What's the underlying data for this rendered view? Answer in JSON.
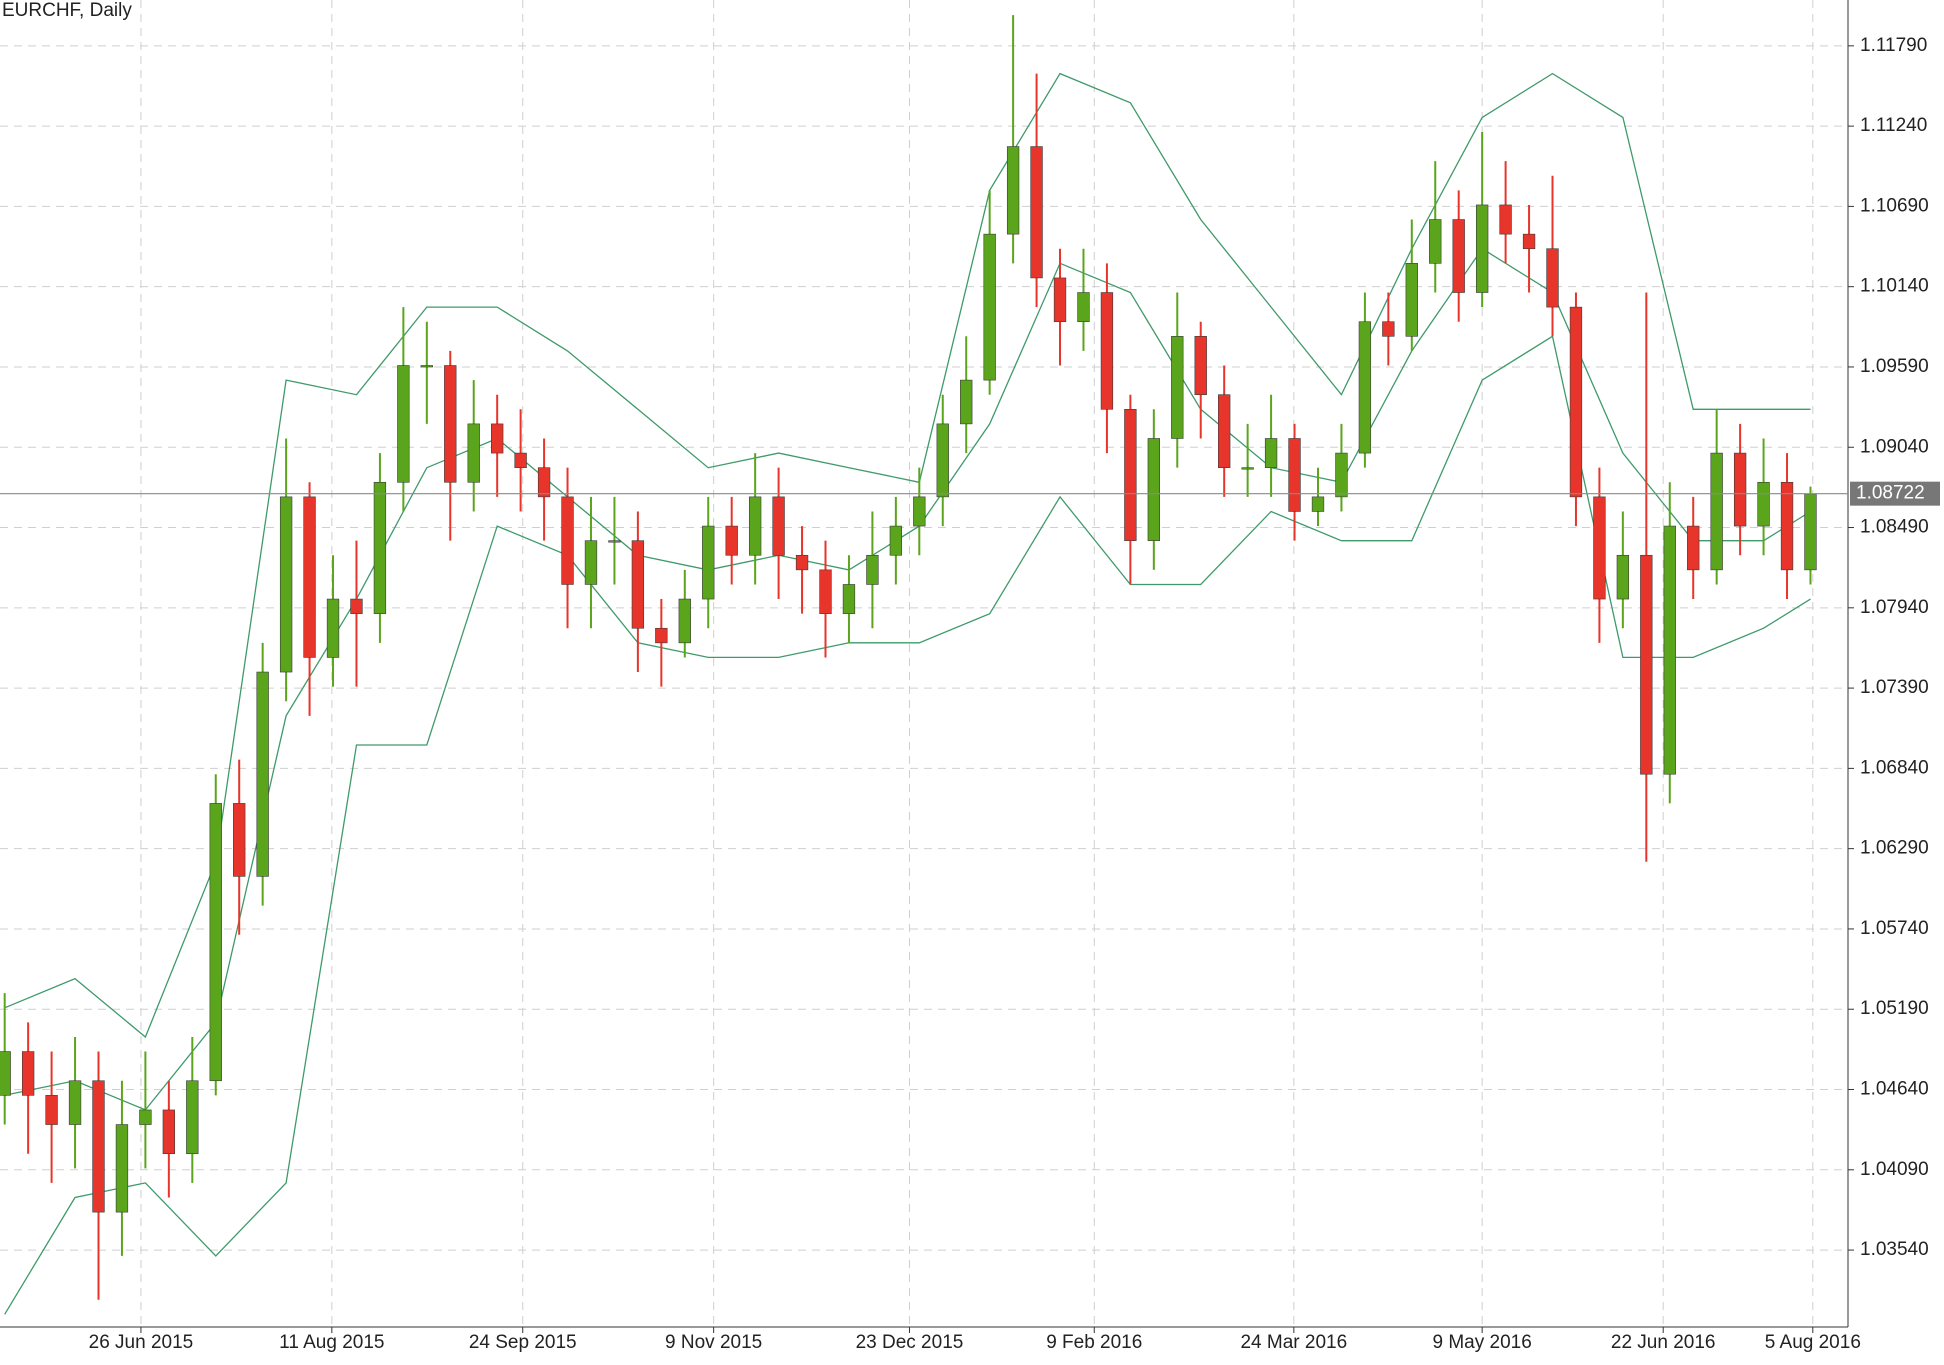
{
  "chart_data": {
    "type": "candlestick",
    "title": "EURCHF, Daily",
    "up_color": "#5aa51c",
    "down_color": "#e8352b",
    "x": [
      0,
      1,
      2,
      3,
      4,
      5,
      6,
      7,
      8,
      9,
      10,
      11,
      12,
      13,
      14,
      15,
      16,
      17,
      18,
      19,
      20,
      21,
      22,
      23,
      24,
      25,
      26,
      27,
      28,
      29,
      30,
      31,
      32,
      33,
      34,
      35,
      36,
      37,
      38,
      39,
      40,
      41,
      42,
      43,
      44,
      45,
      46,
      47,
      48,
      49,
      50,
      51,
      52,
      53,
      54,
      55,
      56,
      57,
      58,
      59,
      60,
      61,
      62,
      63,
      64,
      65,
      66,
      67,
      68,
      69,
      70,
      71,
      72,
      73,
      74,
      75,
      76,
      77
    ],
    "open": [
      1.046,
      1.049,
      1.046,
      1.044,
      1.047,
      1.038,
      1.044,
      1.045,
      1.042,
      1.047,
      1.066,
      1.061,
      1.075,
      1.087,
      1.076,
      1.08,
      1.079,
      1.088,
      1.096,
      1.096,
      1.088,
      1.092,
      1.09,
      1.089,
      1.087,
      1.081,
      1.084,
      1.084,
      1.078,
      1.077,
      1.08,
      1.085,
      1.083,
      1.087,
      1.083,
      1.082,
      1.079,
      1.081,
      1.083,
      1.085,
      1.087,
      1.092,
      1.095,
      1.105,
      1.111,
      1.102,
      1.099,
      1.101,
      1.093,
      1.084,
      1.091,
      1.098,
      1.094,
      1.089,
      1.089,
      1.091,
      1.086,
      1.087,
      1.09,
      1.099,
      1.098,
      1.103,
      1.106,
      1.101,
      1.107,
      1.105,
      1.104,
      1.1,
      1.087,
      1.08,
      1.083,
      1.068,
      1.085,
      1.082,
      1.09,
      1.085,
      1.088,
      1.082
    ],
    "high": [
      1.053,
      1.051,
      1.049,
      1.05,
      1.049,
      1.047,
      1.049,
      1.047,
      1.05,
      1.068,
      1.069,
      1.077,
      1.091,
      1.088,
      1.083,
      1.084,
      1.09,
      1.1,
      1.099,
      1.097,
      1.095,
      1.094,
      1.093,
      1.091,
      1.089,
      1.087,
      1.087,
      1.086,
      1.08,
      1.082,
      1.087,
      1.087,
      1.09,
      1.089,
      1.085,
      1.084,
      1.083,
      1.086,
      1.087,
      1.089,
      1.094,
      1.098,
      1.108,
      1.12,
      1.116,
      1.104,
      1.104,
      1.103,
      1.094,
      1.093,
      1.101,
      1.099,
      1.096,
      1.092,
      1.094,
      1.092,
      1.089,
      1.092,
      1.101,
      1.101,
      1.106,
      1.11,
      1.108,
      1.112,
      1.11,
      1.107,
      1.109,
      1.101,
      1.089,
      1.086,
      1.101,
      1.088,
      1.087,
      1.093,
      1.092,
      1.091,
      1.09,
      1.0877
    ],
    "low": [
      1.044,
      1.042,
      1.04,
      1.041,
      1.032,
      1.035,
      1.041,
      1.039,
      1.04,
      1.046,
      1.057,
      1.059,
      1.073,
      1.072,
      1.074,
      1.074,
      1.077,
      1.086,
      1.092,
      1.084,
      1.086,
      1.087,
      1.086,
      1.084,
      1.078,
      1.078,
      1.081,
      1.075,
      1.074,
      1.076,
      1.078,
      1.081,
      1.081,
      1.08,
      1.079,
      1.076,
      1.077,
      1.078,
      1.081,
      1.083,
      1.085,
      1.09,
      1.094,
      1.103,
      1.1,
      1.096,
      1.097,
      1.09,
      1.081,
      1.082,
      1.089,
      1.091,
      1.087,
      1.087,
      1.087,
      1.084,
      1.085,
      1.086,
      1.089,
      1.096,
      1.097,
      1.101,
      1.099,
      1.1,
      1.103,
      1.101,
      1.098,
      1.085,
      1.077,
      1.078,
      1.062,
      1.066,
      1.08,
      1.081,
      1.083,
      1.083,
      1.08,
      1.081
    ],
    "close": [
      1.049,
      1.046,
      1.044,
      1.047,
      1.038,
      1.044,
      1.045,
      1.042,
      1.047,
      1.066,
      1.061,
      1.075,
      1.087,
      1.076,
      1.08,
      1.079,
      1.088,
      1.096,
      1.096,
      1.088,
      1.092,
      1.09,
      1.089,
      1.087,
      1.081,
      1.084,
      1.084,
      1.078,
      1.077,
      1.08,
      1.085,
      1.083,
      1.087,
      1.083,
      1.082,
      1.079,
      1.081,
      1.083,
      1.085,
      1.087,
      1.092,
      1.095,
      1.105,
      1.111,
      1.102,
      1.099,
      1.101,
      1.093,
      1.084,
      1.091,
      1.098,
      1.094,
      1.089,
      1.089,
      1.091,
      1.086,
      1.087,
      1.09,
      1.099,
      1.098,
      1.103,
      1.106,
      1.101,
      1.107,
      1.105,
      1.104,
      1.1,
      1.087,
      1.08,
      1.083,
      1.068,
      1.085,
      1.082,
      1.09,
      1.085,
      1.088,
      1.082,
      1.0872
    ],
    "bands": {
      "color": "#3f9a6a",
      "x": [
        0,
        3,
        6,
        9,
        12,
        15,
        18,
        21,
        24,
        27,
        30,
        33,
        36,
        39,
        42,
        45,
        48,
        51,
        54,
        57,
        60,
        63,
        66,
        69,
        72,
        75,
        77
      ],
      "upper": [
        1.052,
        1.054,
        1.05,
        1.062,
        1.095,
        1.094,
        1.1,
        1.1,
        1.097,
        1.093,
        1.089,
        1.09,
        1.089,
        1.088,
        1.108,
        1.116,
        1.114,
        1.106,
        1.1,
        1.094,
        1.104,
        1.113,
        1.116,
        1.113,
        1.093,
        1.093,
        1.093
      ],
      "middle": [
        1.046,
        1.047,
        1.045,
        1.051,
        1.072,
        1.08,
        1.089,
        1.091,
        1.087,
        1.083,
        1.082,
        1.083,
        1.082,
        1.085,
        1.092,
        1.103,
        1.101,
        1.093,
        1.089,
        1.088,
        1.097,
        1.104,
        1.101,
        1.09,
        1.084,
        1.084,
        1.086
      ],
      "lower": [
        1.031,
        1.039,
        1.04,
        1.035,
        1.04,
        1.07,
        1.07,
        1.085,
        1.083,
        1.077,
        1.076,
        1.076,
        1.077,
        1.077,
        1.079,
        1.087,
        1.081,
        1.081,
        1.086,
        1.084,
        1.084,
        1.095,
        1.098,
        1.076,
        1.076,
        1.078,
        1.08
      ]
    },
    "last_price": 1.08722,
    "xlim": [
      -0.2,
      78.6
    ],
    "xticks": [
      {
        "value": 5.81,
        "label": "26 Jun 2015"
      },
      {
        "value": 13.95,
        "label": "11 Aug 2015"
      },
      {
        "value": 22.09,
        "label": "24 Sep 2015"
      },
      {
        "value": 30.23,
        "label": "9 Nov 2015"
      },
      {
        "value": 38.58,
        "label": "23 Dec 2015"
      },
      {
        "value": 46.46,
        "label": "9 Feb 2016"
      },
      {
        "value": 54.97,
        "label": "24 Mar 2016"
      },
      {
        "value": 63.0,
        "label": "9 May 2016"
      },
      {
        "value": 70.72,
        "label": "22 Jun 2016"
      },
      {
        "value": 77.1,
        "label": "5 Aug 2016"
      }
    ],
    "ylim": [
      1.03013,
      1.12104
    ],
    "yticks": [
      {
        "value": 1.0354,
        "label": "1.03540"
      },
      {
        "value": 1.0409,
        "label": "1.04090"
      },
      {
        "value": 1.0464,
        "label": "1.04640"
      },
      {
        "value": 1.0519,
        "label": "1.05190"
      },
      {
        "value": 1.0574,
        "label": "1.05740"
      },
      {
        "value": 1.0629,
        "label": "1.06290"
      },
      {
        "value": 1.0684,
        "label": "1.06840"
      },
      {
        "value": 1.0739,
        "label": "1.07390"
      },
      {
        "value": 1.0794,
        "label": "1.07940"
      },
      {
        "value": 1.0849,
        "label": "1.08490"
      },
      {
        "value": 1.0904,
        "label": "1.09040"
      },
      {
        "value": 1.0959,
        "label": "1.09590"
      },
      {
        "value": 1.1014,
        "label": "1.10140"
      },
      {
        "value": 1.1069,
        "label": "1.10690"
      },
      {
        "value": 1.1124,
        "label": "1.11240"
      },
      {
        "value": 1.1179,
        "label": "1.11790"
      }
    ],
    "grid": true
  }
}
